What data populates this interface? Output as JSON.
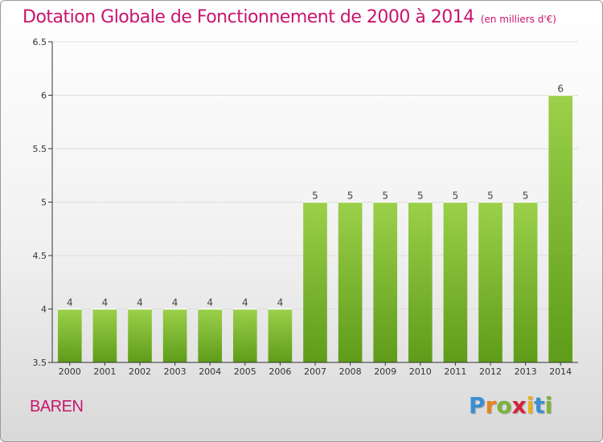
{
  "title": "Dotation Globale de Fonctionnement de 2000 à 2014",
  "unit_note": "(en milliers d'€)",
  "commune": "BAREN",
  "brand": {
    "name": "Proxiti",
    "letters": [
      "P",
      "r",
      "o",
      "x",
      "i",
      "t",
      "i"
    ],
    "letter_colors": [
      "#3a8fd0",
      "#e8831f",
      "#7ab43a",
      "#d4223a",
      "#e8b020",
      "#3a8fd0",
      "#7ab43a"
    ]
  },
  "colors": {
    "title": "#c8146e",
    "bar_top": "#9bd04a",
    "bar_bottom": "#5e9c19",
    "axis": "#333333",
    "grid": "#dddddd"
  },
  "chart_data": {
    "type": "bar",
    "title": "Dotation Globale de Fonctionnement de 2000 à 2014",
    "xlabel": "",
    "ylabel": "",
    "categories": [
      "2000",
      "2001",
      "2002",
      "2003",
      "2004",
      "2005",
      "2006",
      "2007",
      "2008",
      "2009",
      "2010",
      "2011",
      "2012",
      "2013",
      "2014"
    ],
    "values": [
      4,
      4,
      4,
      4,
      4,
      4,
      4,
      5,
      5,
      5,
      5,
      5,
      5,
      5,
      6
    ],
    "labels": [
      "4",
      "4",
      "4",
      "4",
      "4",
      "4",
      "4",
      "5",
      "5",
      "5",
      "5",
      "5",
      "5",
      "5",
      "6"
    ],
    "ylim": [
      3.5,
      6.5
    ],
    "yticks": [
      3.5,
      4,
      4.5,
      5,
      5.5,
      6,
      6.5
    ],
    "ytick_labels": [
      "3.5",
      "4",
      "4.5",
      "5",
      "5.5",
      "6",
      "6.5"
    ],
    "grid": true,
    "legend": "none"
  }
}
